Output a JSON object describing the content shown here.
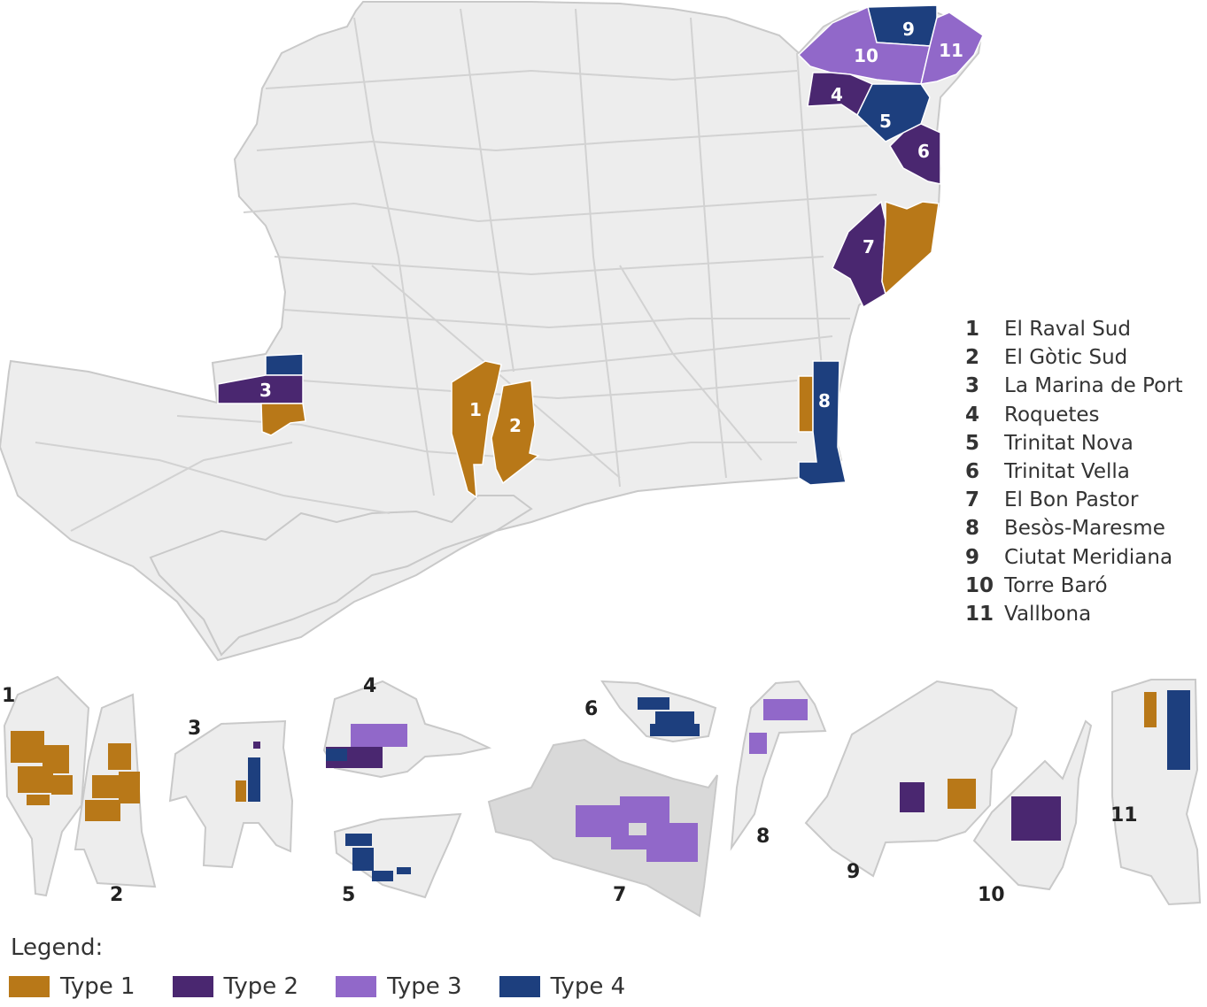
{
  "colors": {
    "type1": "#B87818",
    "type2": "#4A2770",
    "type3": "#9168C9",
    "type4": "#1D3F7E",
    "city": "#EDEDED",
    "streets": "#D2D2D2"
  },
  "map_labels": [
    "1",
    "2",
    "3",
    "4",
    "5",
    "6",
    "7",
    "8",
    "9",
    "10",
    "11"
  ],
  "neighbourhoods": [
    {
      "num": "1",
      "name": "El Raval Sud"
    },
    {
      "num": "2",
      "name": "El Gòtic Sud"
    },
    {
      "num": "3",
      "name": "La Marina de Port"
    },
    {
      "num": "4",
      "name": "Roquetes"
    },
    {
      "num": "5",
      "name": "Trinitat Nova"
    },
    {
      "num": "6",
      "name": "Trinitat Vella"
    },
    {
      "num": "7",
      "name": "El Bon Pastor"
    },
    {
      "num": "8",
      "name": "Besòs-Maresme"
    },
    {
      "num": "9",
      "name": "Ciutat Meridiana"
    },
    {
      "num": "10",
      "name": "Torre Baró"
    },
    {
      "num": "11",
      "name": "Vallbona"
    }
  ],
  "inset_labels": [
    "1",
    "2",
    "3",
    "4",
    "5",
    "6",
    "7",
    "8",
    "9",
    "10",
    "11"
  ],
  "legend": {
    "title": "Legend:",
    "items": [
      {
        "label": "Type 1",
        "color_key": "type1"
      },
      {
        "label": "Type 2",
        "color_key": "type2"
      },
      {
        "label": "Type 3",
        "color_key": "type3"
      },
      {
        "label": "Type 4",
        "color_key": "type4"
      }
    ]
  }
}
